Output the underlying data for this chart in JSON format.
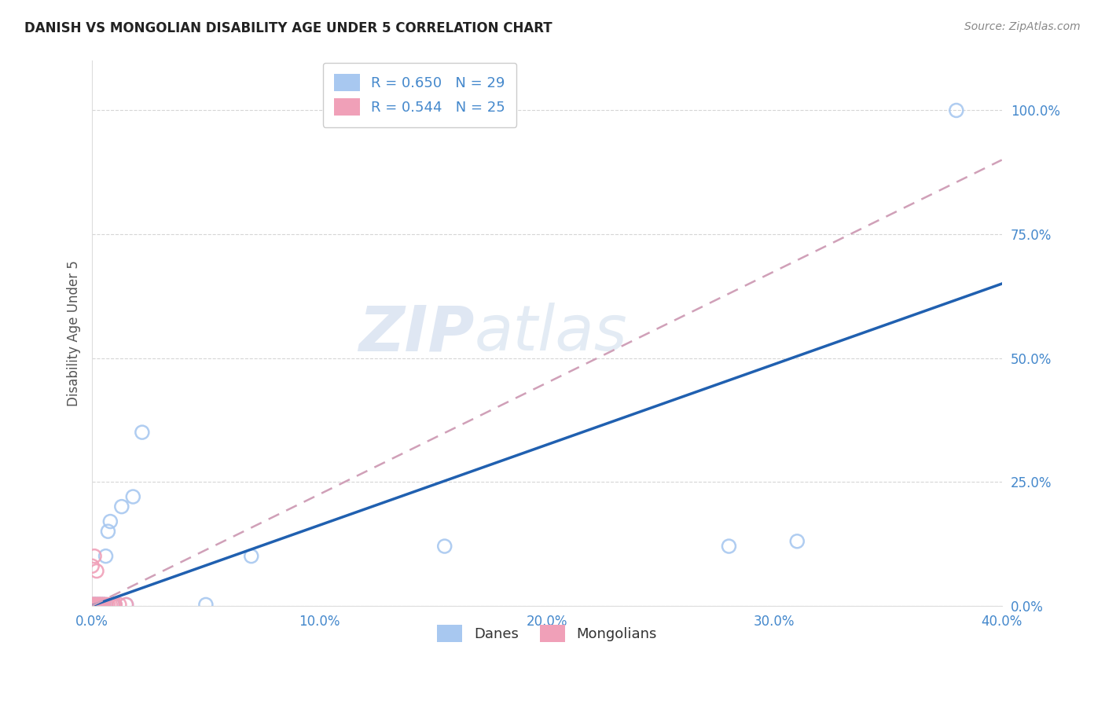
{
  "title": "DANISH VS MONGOLIAN DISABILITY AGE UNDER 5 CORRELATION CHART",
  "source": "Source: ZipAtlas.com",
  "ylabel": "Disability Age Under 5",
  "xlabel": "",
  "xlim": [
    0.0,
    0.4
  ],
  "ylim": [
    0.0,
    1.1
  ],
  "xticks": [
    0.0,
    0.1,
    0.2,
    0.3,
    0.4
  ],
  "xtick_labels": [
    "0.0%",
    "10.0%",
    "20.0%",
    "30.0%",
    "40.0%"
  ],
  "ytick_labels": [
    "0.0%",
    "25.0%",
    "50.0%",
    "75.0%",
    "100.0%"
  ],
  "yticks": [
    0.0,
    0.25,
    0.5,
    0.75,
    1.0
  ],
  "danes_color": "#a8c8f0",
  "mongolians_color": "#f0a0b8",
  "danes_line_color": "#2060b0",
  "mongolians_line_color": "#d0a0b8",
  "danes_R": 0.65,
  "danes_N": 29,
  "mongolians_R": 0.544,
  "mongolians_N": 25,
  "danes_x": [
    0.0,
    0.001,
    0.001,
    0.001,
    0.002,
    0.002,
    0.002,
    0.003,
    0.003,
    0.004,
    0.004,
    0.005,
    0.005,
    0.006,
    0.006,
    0.007,
    0.008,
    0.009,
    0.01,
    0.013,
    0.015,
    0.018,
    0.022,
    0.05,
    0.07,
    0.155,
    0.28,
    0.31,
    0.38
  ],
  "danes_y": [
    0.002,
    0.002,
    0.002,
    0.002,
    0.002,
    0.002,
    0.002,
    0.002,
    0.002,
    0.002,
    0.002,
    0.002,
    0.002,
    0.002,
    0.1,
    0.15,
    0.17,
    0.002,
    0.002,
    0.2,
    0.002,
    0.22,
    0.35,
    0.002,
    0.1,
    0.12,
    0.12,
    0.13,
    1.0
  ],
  "mongolians_x": [
    0.0,
    0.0,
    0.0,
    0.001,
    0.001,
    0.001,
    0.001,
    0.002,
    0.002,
    0.002,
    0.003,
    0.003,
    0.003,
    0.004,
    0.004,
    0.005,
    0.005,
    0.006,
    0.007,
    0.008,
    0.009,
    0.01,
    0.01,
    0.012,
    0.015
  ],
  "mongolians_y": [
    0.002,
    0.002,
    0.08,
    0.002,
    0.002,
    0.002,
    0.1,
    0.002,
    0.002,
    0.07,
    0.002,
    0.002,
    0.002,
    0.002,
    0.002,
    0.002,
    0.002,
    0.002,
    0.002,
    0.002,
    0.002,
    0.002,
    0.002,
    0.002,
    0.002
  ],
  "danes_line_x": [
    0.0,
    0.4
  ],
  "danes_line_y": [
    0.0,
    0.65
  ],
  "mongolians_line_x": [
    0.0,
    0.4
  ],
  "mongolians_line_y": [
    0.0,
    0.9
  ],
  "watermark_zip": "ZIP",
  "watermark_atlas": "atlas",
  "background_color": "#ffffff",
  "grid_color": "#cccccc"
}
